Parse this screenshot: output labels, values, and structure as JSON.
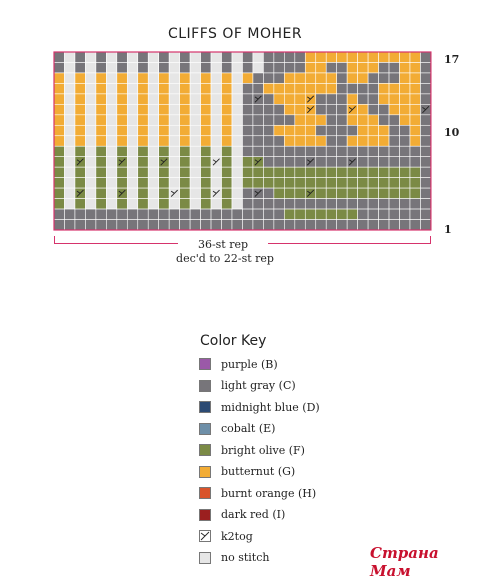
{
  "chart_title": "CLIFFS OF MOHER",
  "row_numbers": {
    "bottom": "1",
    "middle": "10",
    "top": "17"
  },
  "repeat": {
    "label": "36-st rep",
    "sub": "dec'd to 22-st rep"
  },
  "colors": {
    "purple": "#9b59a8",
    "light_gray": "#77757a",
    "midnight_blue": "#2c4a73",
    "cobalt": "#6e8fa8",
    "bright_olive": "#7b8a45",
    "butternut": "#f2ac35",
    "burnt_orange": "#d9542b",
    "dark_red": "#9b1f1f",
    "no_stitch": "#e6e6e6",
    "grid_line": "#ffffff"
  },
  "chart_grid": {
    "columns": 36,
    "rows": 17,
    "legend": {
      "G": "gray",
      "O": "butternut",
      "V": "bright olive",
      "N": "no stitch"
    },
    "rows_top_to_bottom": [
      "GNGNGNGNGNGNGNGNGNGNGGGGOOOOOOOOOOOG",
      "GNGNGNGNGNGNGNGNGNGNGGGGOOGGOOOGGOOG",
      "ONONONONONONONONONOGGGOOOOOGOOGGGOOG",
      "ONONONONONONONONONGGOOOOOOOGGGGOOOOG",
      "ONONONONONONONONONGGGOOOOGGGOGGOOOOG",
      "ONONONONONONONONONGGGGOOOGGGOOGGOOOG",
      "ONONONONONONONONONGGGGGOOOGGOOOGGOOG",
      "ONONONONONONONONONGGGOOOOGGGGOOOGGOG",
      "ONONONONONONONONONGGGGOOOOGGOOOOGGOG",
      "VNVNVNVNVNVNVNVNVNGGGGGGGGGGGGGGGGGG",
      "VNVNVNVNVNVNVNVNVNVVGGGGGGGGGGGGGGGG",
      "VNVNVNVNVNVNVNVNVNVVVVVVVVVVVVVVVVVG",
      "VNVNVNVNVNVNVNVNVNVVVVVVVVVVVVVVVVVG",
      "VNVNVNVNVNVNVNVNVNGGGVVVVVVVVVVVVVVG",
      "VNVNVNVNVNVNVNVNVNGGGGGGGGGGGGGGGGGG",
      "GGGGGGGGGGGGGGGGGGGGGGVVVVVVVGGGGGGG",
      "GGGGGGGGGGGGGGGGGGGGGGGGGGGGGGGGGGGG"
    ],
    "k2tog_cells": [
      [
        4,
        19
      ],
      [
        4,
        24
      ],
      [
        13,
        2
      ],
      [
        13,
        6
      ],
      [
        13,
        11
      ],
      [
        13,
        15
      ],
      [
        13,
        19
      ],
      [
        13,
        24
      ],
      [
        10,
        2
      ],
      [
        10,
        6
      ],
      [
        10,
        10
      ],
      [
        10,
        15
      ],
      [
        10,
        19
      ],
      [
        10,
        24
      ],
      [
        10,
        28
      ],
      [
        5,
        24
      ],
      [
        5,
        28
      ],
      [
        5,
        35
      ]
    ]
  },
  "color_key": {
    "title": "Color Key",
    "items": [
      {
        "label": "purple (B)",
        "color": "#9b59a8",
        "icon": "swatch"
      },
      {
        "label": "light gray (C)",
        "color": "#77757a",
        "icon": "swatch"
      },
      {
        "label": "midnight blue (D)",
        "color": "#2c4a73",
        "icon": "swatch"
      },
      {
        "label": "cobalt (E)",
        "color": "#6e8fa8",
        "icon": "swatch"
      },
      {
        "label": "bright olive (F)",
        "color": "#7b8a45",
        "icon": "swatch"
      },
      {
        "label": "butternut (G)",
        "color": "#f2ac35",
        "icon": "swatch"
      },
      {
        "label": "burnt orange (H)",
        "color": "#d9542b",
        "icon": "swatch"
      },
      {
        "label": "dark red (I)",
        "color": "#9b1f1f",
        "icon": "swatch"
      },
      {
        "label": "k2tog",
        "color": "#ffffff",
        "icon": "k2tog-symbol"
      },
      {
        "label": "no stitch",
        "color": "#e6e6e6",
        "icon": "swatch"
      }
    ]
  },
  "watermark": "Страна Мам"
}
